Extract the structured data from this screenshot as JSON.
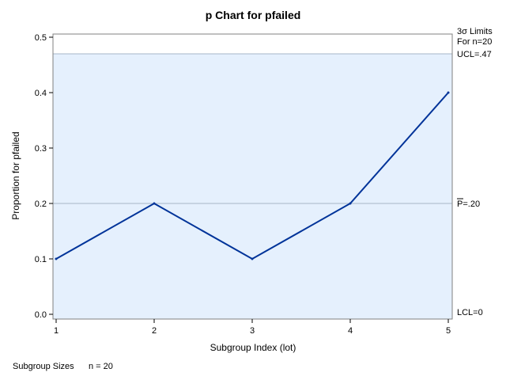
{
  "chart_data": {
    "type": "line",
    "title": "p Chart for pfailed",
    "xlabel": "Subgroup Index (lot)",
    "ylabel": "Proportion for pfailed",
    "x": [
      1,
      2,
      3,
      4,
      5
    ],
    "values": [
      0.1,
      0.2,
      0.1,
      0.2,
      0.4
    ],
    "xlim": [
      1,
      5
    ],
    "ylim": [
      0,
      0.5
    ],
    "xticks": [
      "1",
      "2",
      "3",
      "4",
      "5"
    ],
    "yticks": [
      "0.0",
      "0.1",
      "0.2",
      "0.3",
      "0.4",
      "0.5"
    ],
    "ucl": 0.47,
    "center": 0.2,
    "lcl": 0,
    "limits_label": [
      "3σ Limits",
      "For n=20"
    ],
    "ucl_label": "UCL=.47",
    "center_label_prefix": "P",
    "center_label_value": "=.20",
    "lcl_label": "LCL=0",
    "subgroup_sizes_label": "Subgroup Sizes",
    "subgroup_sizes_value": "n = 20",
    "colors": {
      "line": "#003399",
      "band": "#e5f0fd",
      "limit_line": "#a6b6c8",
      "frame": "#808080"
    }
  }
}
